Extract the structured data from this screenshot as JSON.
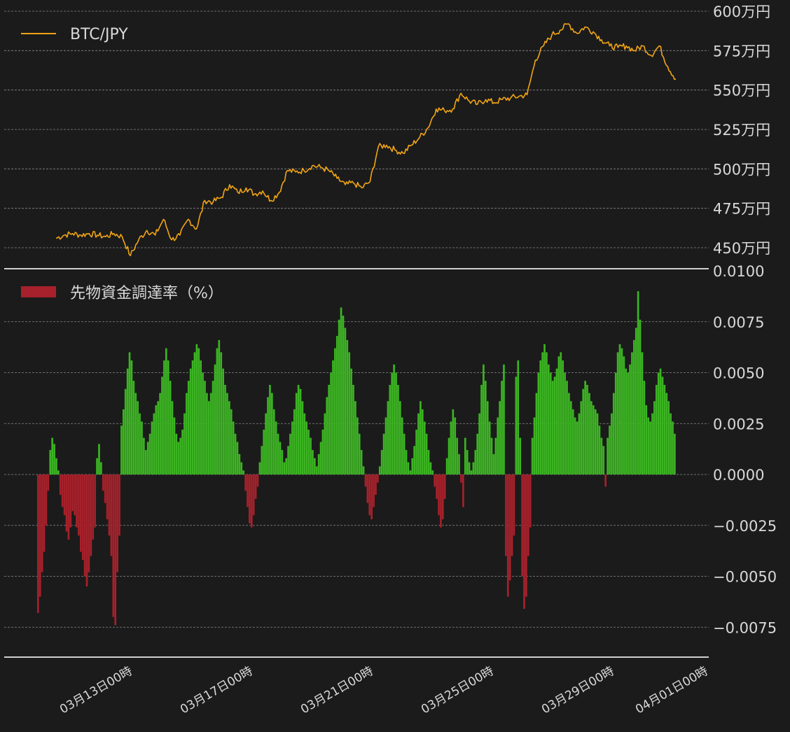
{
  "colors": {
    "background": "#1b1b1b",
    "price_line": "#f2a516",
    "funding_positive": "#3cb423",
    "funding_negative": "#a6212b",
    "grid": "#8a8a8a",
    "axis_text": "#d9d9d9",
    "separator": "#cfcfcf"
  },
  "legend": {
    "price_label": "BTC/JPY",
    "funding_label": "先物資金調達率（%）"
  },
  "x_axis": {
    "tick_labels": [
      "03月13日00時",
      "03月17日00時",
      "03月21日00時",
      "03月25日00時",
      "03月29日00時",
      "04月01日00時"
    ]
  },
  "chart_data": [
    {
      "type": "line",
      "series": [
        {
          "name": "BTC/JPY"
        }
      ],
      "y_unit": "万円",
      "ylim": [
        440,
        600
      ],
      "yticks": [
        450,
        475,
        500,
        525,
        550,
        575,
        600
      ],
      "ytick_labels": [
        "450万円",
        "475万円",
        "500万円",
        "525万円",
        "550万円",
        "575万円",
        "600万円"
      ],
      "x_start": "03月11日18時",
      "x_end": "03月31日18時",
      "points": [
        [
          "03-11 18",
          456
        ],
        [
          "03-12 00",
          458
        ],
        [
          "03-12 06",
          459
        ],
        [
          "03-12 12",
          458
        ],
        [
          "03-12 18",
          459
        ],
        [
          "03-13 00",
          458
        ],
        [
          "03-13 06",
          457
        ],
        [
          "03-13 12",
          459
        ],
        [
          "03-13 18",
          457
        ],
        [
          "03-14 00",
          445
        ],
        [
          "03-14 06",
          455
        ],
        [
          "03-14 12",
          461
        ],
        [
          "03-14 18",
          458
        ],
        [
          "03-15 00",
          468
        ],
        [
          "03-15 06",
          455
        ],
        [
          "03-15 12",
          458
        ],
        [
          "03-15 18",
          468
        ],
        [
          "03-16 00",
          462
        ],
        [
          "03-16 06",
          480
        ],
        [
          "03-16 12",
          479
        ],
        [
          "03-16 18",
          482
        ],
        [
          "03-17 00",
          490
        ],
        [
          "03-17 06",
          485
        ],
        [
          "03-17 12",
          488
        ],
        [
          "03-17 18",
          484
        ],
        [
          "03-18 00",
          486
        ],
        [
          "03-18 06",
          480
        ],
        [
          "03-18 12",
          485
        ],
        [
          "03-18 18",
          499
        ],
        [
          "03-19 00",
          498
        ],
        [
          "03-19 06",
          499
        ],
        [
          "03-19 12",
          502
        ],
        [
          "03-19 18",
          501
        ],
        [
          "03-20 00",
          499
        ],
        [
          "03-20 06",
          494
        ],
        [
          "03-20 12",
          490
        ],
        [
          "03-20 18",
          491
        ],
        [
          "03-21 00",
          488
        ],
        [
          "03-21 06",
          492
        ],
        [
          "03-21 12",
          514
        ],
        [
          "03-21 18",
          515
        ],
        [
          "03-22 00",
          512
        ],
        [
          "03-22 06",
          510
        ],
        [
          "03-22 12",
          515
        ],
        [
          "03-22 18",
          520
        ],
        [
          "03-23 00",
          526
        ],
        [
          "03-23 06",
          538
        ],
        [
          "03-23 12",
          537
        ],
        [
          "03-23 18",
          538
        ],
        [
          "03-24 00",
          548
        ],
        [
          "03-24 06",
          543
        ],
        [
          "03-24 12",
          541
        ],
        [
          "03-24 18",
          544
        ],
        [
          "03-25 00",
          542
        ],
        [
          "03-25 06",
          544
        ],
        [
          "03-25 12",
          545
        ],
        [
          "03-25 18",
          546
        ],
        [
          "03-26 00",
          547
        ],
        [
          "03-26 06",
          569
        ],
        [
          "03-26 12",
          578
        ],
        [
          "03-26 18",
          585
        ],
        [
          "03-27 00",
          588
        ],
        [
          "03-27 06",
          592
        ],
        [
          "03-27 12",
          586
        ],
        [
          "03-27 18",
          590
        ],
        [
          "03-28 00",
          587
        ],
        [
          "03-28 06",
          582
        ],
        [
          "03-28 12",
          578
        ],
        [
          "03-28 18",
          577
        ],
        [
          "03-29 00",
          578
        ],
        [
          "03-29 06",
          575
        ],
        [
          "03-29 12",
          578
        ],
        [
          "03-29 18",
          572
        ],
        [
          "03-30 00",
          578
        ],
        [
          "03-30 06",
          565
        ],
        [
          "03-30 12",
          557
        ]
      ]
    },
    {
      "type": "bar",
      "series": [
        {
          "name": "先物資金調達率（%）"
        }
      ],
      "ylim": [
        -0.0088,
        0.01
      ],
      "yticks": [
        -0.0075,
        -0.005,
        -0.0025,
        0.0,
        0.0025,
        0.005,
        0.0075,
        0.01
      ],
      "ytick_labels": [
        "−0.0075",
        "−0.0050",
        "−0.0025",
        "0.0000",
        "0.0025",
        "0.0050",
        "0.0075",
        "0.0100"
      ],
      "bar_interval": "2時間",
      "values": [
        -0.0068,
        -0.006,
        -0.0048,
        -0.0038,
        -0.0025,
        -0.0008,
        0.0012,
        0.0018,
        0.0015,
        0.0008,
        0.0002,
        -0.001,
        -0.0016,
        -0.002,
        -0.0028,
        -0.0032,
        -0.0026,
        -0.0018,
        -0.002,
        -0.0026,
        -0.003,
        -0.0038,
        -0.0042,
        -0.005,
        -0.0055,
        -0.0048,
        -0.004,
        -0.0032,
        -0.0026,
        0.0008,
        0.0015,
        0.0006,
        -0.0008,
        -0.0014,
        -0.0022,
        -0.003,
        -0.004,
        -0.007,
        -0.0074,
        -0.0048,
        -0.003,
        0.0024,
        0.0032,
        0.0042,
        0.0052,
        0.006,
        0.0056,
        0.0046,
        0.004,
        0.0036,
        0.003,
        0.0026,
        0.0018,
        0.0012,
        0.0016,
        0.002,
        0.0026,
        0.003,
        0.0034,
        0.0036,
        0.004,
        0.0048,
        0.0056,
        0.0062,
        0.0056,
        0.0046,
        0.0036,
        0.0028,
        0.002,
        0.0016,
        0.0018,
        0.0022,
        0.003,
        0.004,
        0.0046,
        0.0052,
        0.0056,
        0.006,
        0.0064,
        0.0062,
        0.0056,
        0.005,
        0.0046,
        0.004,
        0.0036,
        0.004,
        0.0046,
        0.0054,
        0.0062,
        0.0066,
        0.006,
        0.0052,
        0.0044,
        0.004,
        0.0036,
        0.0032,
        0.0026,
        0.002,
        0.0016,
        0.001,
        0.0006,
        0.0002,
        -0.0008,
        -0.0016,
        -0.0024,
        -0.0026,
        -0.002,
        -0.0012,
        -0.0006,
        0.0006,
        0.0014,
        0.0022,
        0.003,
        0.0038,
        0.0044,
        0.004,
        0.0032,
        0.0026,
        0.002,
        0.0016,
        0.0012,
        0.0006,
        0.0008,
        0.0014,
        0.002,
        0.0026,
        0.0032,
        0.004,
        0.0044,
        0.0042,
        0.0036,
        0.003,
        0.0026,
        0.0022,
        0.0018,
        0.0012,
        0.0008,
        0.0004,
        0.001,
        0.0016,
        0.0022,
        0.003,
        0.0038,
        0.0044,
        0.005,
        0.0056,
        0.0062,
        0.0068,
        0.0076,
        0.0082,
        0.0078,
        0.0072,
        0.0066,
        0.006,
        0.0052,
        0.0044,
        0.0036,
        0.0028,
        0.002,
        0.0012,
        0.0004,
        -0.0006,
        -0.0014,
        -0.002,
        -0.0022,
        -0.0016,
        -0.001,
        -0.0004,
        0.0004,
        0.0012,
        0.002,
        0.0028,
        0.0036,
        0.0044,
        0.005,
        0.0054,
        0.005,
        0.0044,
        0.0036,
        0.0028,
        0.002,
        0.0012,
        0.0006,
        0.0002,
        0.0008,
        0.0014,
        0.0022,
        0.003,
        0.0036,
        0.0032,
        0.0026,
        0.002,
        0.0012,
        0.0006,
        0.0002,
        -0.0006,
        -0.0012,
        -0.002,
        -0.0026,
        -0.0022,
        -0.0012,
        0.0008,
        0.0018,
        0.0026,
        0.0032,
        0.0028,
        0.0018,
        0.001,
        -0.0004,
        -0.0016,
        0.0018,
        0.0012,
        0.0006,
        0.0002,
        0.0006,
        0.0012,
        0.002,
        0.003,
        0.0044,
        0.0054,
        0.0046,
        0.0036,
        0.0026,
        0.0018,
        0.001,
        0.0018,
        0.0028,
        0.0036,
        0.0046,
        0.0054,
        -0.004,
        -0.006,
        -0.0052,
        -0.004,
        -0.003,
        0.0048,
        0.0056,
        0.0018,
        -0.005,
        -0.0066,
        -0.006,
        -0.004,
        -0.0026,
        0.0018,
        0.0028,
        0.004,
        0.005,
        0.0056,
        0.006,
        0.0064,
        0.006,
        0.0054,
        0.005,
        0.0046,
        0.0048,
        0.0052,
        0.0058,
        0.006,
        0.0056,
        0.005,
        0.0046,
        0.004,
        0.0036,
        0.0032,
        0.0028,
        0.0026,
        0.003,
        0.0036,
        0.0042,
        0.0046,
        0.0044,
        0.004,
        0.0036,
        0.0034,
        0.0032,
        0.003,
        0.0024,
        0.0018,
        0.0014,
        -0.0006,
        0.0018,
        0.0024,
        0.003,
        0.004,
        0.005,
        0.006,
        0.0064,
        0.0062,
        0.0058,
        0.0052,
        0.005,
        0.0054,
        0.006,
        0.0066,
        0.0072,
        0.009,
        0.0076,
        0.006,
        0.0046,
        0.0034,
        0.0028,
        0.0026,
        0.003,
        0.0036,
        0.0044,
        0.005,
        0.0052,
        0.0048,
        0.0044,
        0.004,
        0.0036,
        0.003,
        0.0026,
        0.002
      ]
    }
  ]
}
